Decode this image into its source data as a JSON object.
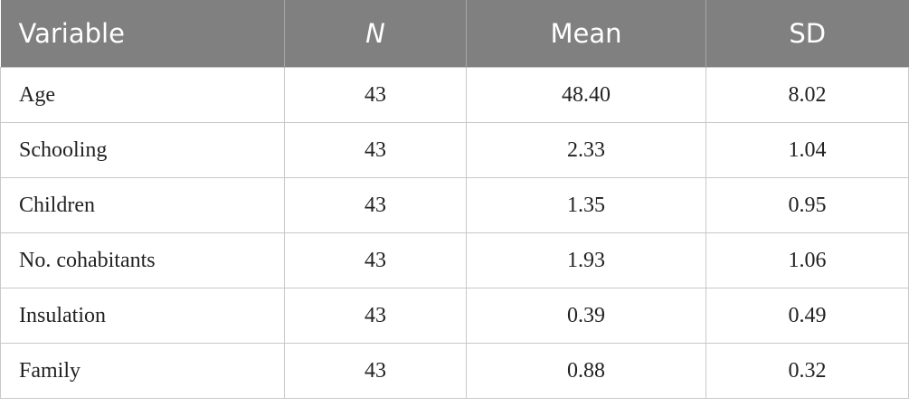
{
  "table": {
    "header": [
      "Variable",
      "N",
      "Mean",
      "SD"
    ],
    "rows": [
      [
        "Age",
        "43",
        "48.40",
        "8.02"
      ],
      [
        "Schooling",
        "43",
        "2.33",
        "1.04"
      ],
      [
        "Children",
        "43",
        "1.35",
        "0.95"
      ],
      [
        "No. cohabitants",
        "43",
        "1.93",
        "1.06"
      ],
      [
        "Insulation",
        "43",
        "0.39",
        "0.49"
      ],
      [
        "Family",
        "43",
        "0.88",
        "0.32"
      ]
    ]
  }
}
